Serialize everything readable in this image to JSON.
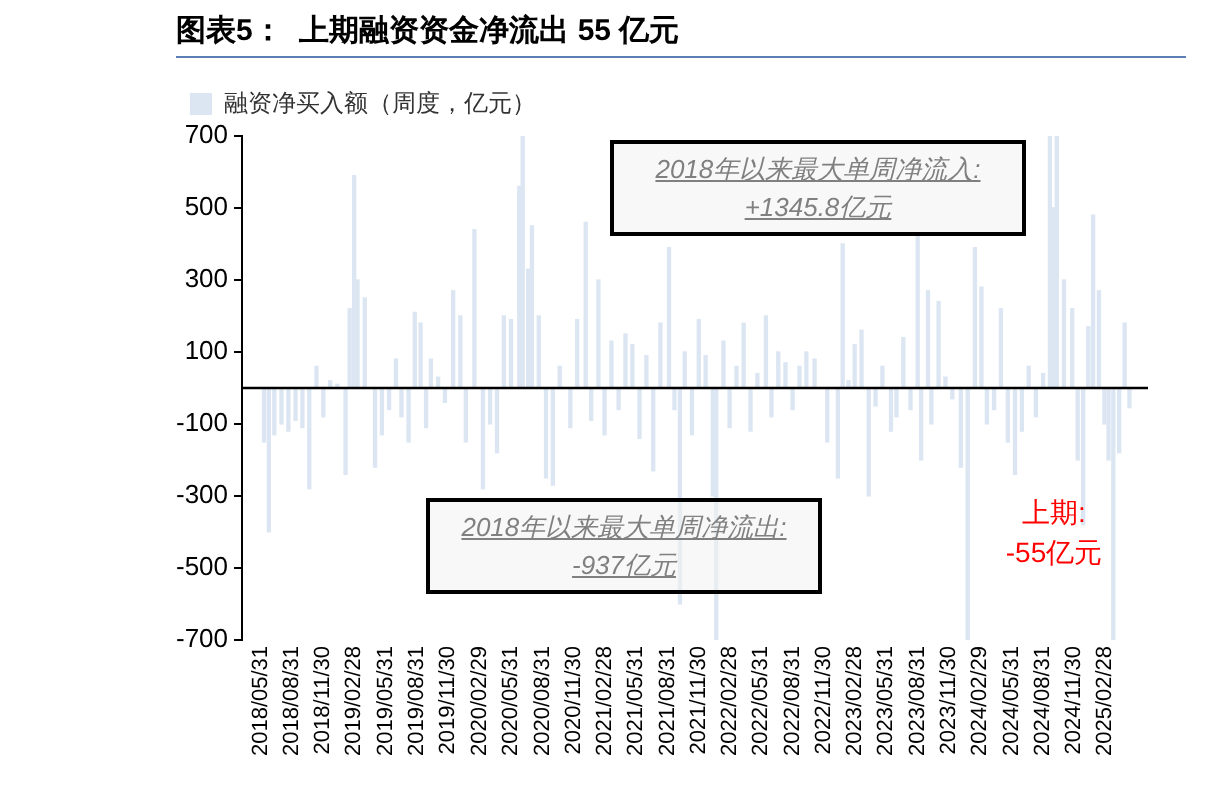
{
  "chart_data": {
    "type": "bar",
    "title": "图表5：  上期融资资金净流出 55 亿元",
    "x": [
      "2018-06-10",
      "2018-06-24",
      "2018-07-10",
      "2018-07-31",
      "2018-08-20",
      "2018-09-10",
      "2018-09-30",
      "2018-10-20",
      "2018-11-10",
      "2018-11-30",
      "2018-12-20",
      "2019-01-10",
      "2019-02-03",
      "2019-02-15",
      "2019-02-28",
      "2019-03-10",
      "2019-03-31",
      "2019-04-30",
      "2019-05-20",
      "2019-06-10",
      "2019-06-30",
      "2019-07-16",
      "2019-08-06",
      "2019-08-24",
      "2019-09-10",
      "2019-09-26",
      "2019-10-10",
      "2019-10-31",
      "2019-11-20",
      "2019-12-14",
      "2020-01-04",
      "2020-01-20",
      "2020-02-14",
      "2020-03-10",
      "2020-03-31",
      "2020-04-20",
      "2020-05-10",
      "2020-05-31",
      "2020-06-24",
      "2020-07-04",
      "2020-07-20",
      "2020-07-31",
      "2020-08-20",
      "2020-09-10",
      "2020-09-30",
      "2020-10-20",
      "2020-11-20",
      "2020-12-10",
      "2021-01-04",
      "2021-01-20",
      "2021-02-10",
      "2021-02-28",
      "2021-03-20",
      "2021-04-10",
      "2021-04-30",
      "2021-05-20",
      "2021-06-10",
      "2021-06-30",
      "2021-07-20",
      "2021-08-10",
      "2021-09-04",
      "2021-09-20",
      "2021-10-06",
      "2021-10-20",
      "2021-11-10",
      "2021-11-30",
      "2021-12-20",
      "2022-01-10",
      "2022-01-20",
      "2022-02-10",
      "2022-02-28",
      "2022-03-20",
      "2022-04-10",
      "2022-04-30",
      "2022-05-20",
      "2022-06-14",
      "2022-06-30",
      "2022-07-20",
      "2022-08-10",
      "2022-08-31",
      "2022-09-20",
      "2022-10-10",
      "2022-11-03",
      "2022-12-10",
      "2023-01-10",
      "2023-01-24",
      "2023-02-10",
      "2023-02-28",
      "2023-03-20",
      "2023-04-10",
      "2023-04-30",
      "2023-05-20",
      "2023-06-14",
      "2023-06-30",
      "2023-07-20",
      "2023-08-10",
      "2023-08-31",
      "2023-09-10",
      "2023-09-30",
      "2023-10-10",
      "2023-10-31",
      "2023-11-20",
      "2023-12-10",
      "2024-01-04",
      "2024-01-24",
      "2024-02-14",
      "2024-03-04",
      "2024-03-20",
      "2024-04-10",
      "2024-04-30",
      "2024-05-20",
      "2024-06-10",
      "2024-06-30",
      "2024-07-20",
      "2024-08-10",
      "2024-08-31",
      "2024-09-20",
      "2024-09-30",
      "2024-10-10",
      "2024-10-31",
      "2024-11-24",
      "2024-12-10",
      "2024-12-26",
      "2025-01-10",
      "2025-01-24",
      "2025-02-10",
      "2025-02-26",
      "2025-03-10",
      "2025-03-24",
      "2025-04-10",
      "2025-04-26",
      "2025-05-10"
    ],
    "series": [
      {
        "name": "融资净买入额（周度，亿元）",
        "color": "#dce6f2",
        "values": [
          -150,
          -400,
          -130,
          -100,
          -120,
          -90,
          -110,
          -280,
          60,
          -80,
          20,
          10,
          -240,
          220,
          590,
          300,
          250,
          -220,
          -130,
          -60,
          80,
          -80,
          -150,
          210,
          180,
          -110,
          80,
          30,
          -40,
          270,
          200,
          -150,
          440,
          -280,
          -100,
          -180,
          200,
          190,
          560,
          700,
          330,
          450,
          200,
          -250,
          -270,
          60,
          -110,
          190,
          460,
          -90,
          300,
          -130,
          130,
          -60,
          150,
          120,
          -140,
          90,
          -230,
          180,
          390,
          -60,
          -600,
          100,
          -130,
          190,
          90,
          -300,
          -700,
          130,
          -110,
          60,
          180,
          -120,
          40,
          200,
          -80,
          100,
          70,
          -60,
          60,
          100,
          80,
          -150,
          -250,
          400,
          20,
          120,
          160,
          -300,
          -50,
          60,
          -120,
          -80,
          140,
          -60,
          430,
          -200,
          270,
          -100,
          240,
          30,
          -30,
          -220,
          -700,
          390,
          280,
          -100,
          -60,
          220,
          -150,
          -240,
          -120,
          60,
          -80,
          40,
          700,
          500,
          700,
          300,
          220,
          -200,
          -380,
          170,
          480,
          270,
          -100,
          -200,
          -700,
          -180,
          180,
          -55
        ]
      }
    ],
    "xlim": [
      "2018-05-24",
      "2025-05-17"
    ],
    "xticks": [
      {
        "value": "2018-05-31",
        "label": "2018/05/31"
      },
      {
        "value": "2018-08-31",
        "label": "2018/08/31"
      },
      {
        "value": "2018-11-30",
        "label": "2018/11/30"
      },
      {
        "value": "2019-02-28",
        "label": "2019/02/28"
      },
      {
        "value": "2019-05-31",
        "label": "2019/05/31"
      },
      {
        "value": "2019-08-31",
        "label": "2019/08/31"
      },
      {
        "value": "2019-11-30",
        "label": "2019/11/30"
      },
      {
        "value": "2020-02-29",
        "label": "2020/02/29"
      },
      {
        "value": "2020-05-31",
        "label": "2020/05/31"
      },
      {
        "value": "2020-08-31",
        "label": "2020/08/31"
      },
      {
        "value": "2020-11-30",
        "label": "2020/11/30"
      },
      {
        "value": "2021-02-28",
        "label": "2021/02/28"
      },
      {
        "value": "2021-05-31",
        "label": "2021/05/31"
      },
      {
        "value": "2021-08-31",
        "label": "2021/08/31"
      },
      {
        "value": "2021-11-30",
        "label": "2021/11/30"
      },
      {
        "value": "2022-02-28",
        "label": "2022/02/28"
      },
      {
        "value": "2022-05-31",
        "label": "2022/05/31"
      },
      {
        "value": "2022-08-31",
        "label": "2022/08/31"
      },
      {
        "value": "2022-11-30",
        "label": "2022/11/30"
      },
      {
        "value": "2023-02-28",
        "label": "2023/02/28"
      },
      {
        "value": "2023-05-31",
        "label": "2023/05/31"
      },
      {
        "value": "2023-08-31",
        "label": "2023/08/31"
      },
      {
        "value": "2023-11-30",
        "label": "2023/11/30"
      },
      {
        "value": "2024-02-29",
        "label": "2024/02/29"
      },
      {
        "value": "2024-05-31",
        "label": "2024/05/31"
      },
      {
        "value": "2024-08-31",
        "label": "2024/08/31"
      },
      {
        "value": "2024-11-30",
        "label": "2024/11/30"
      },
      {
        "value": "2025-02-28",
        "label": "2025/02/28"
      }
    ],
    "ylim": [
      -700,
      700
    ],
    "yticks": [
      -700,
      -500,
      -300,
      -100,
      100,
      300,
      500,
      700
    ],
    "legend": "top left",
    "annotations": [
      "2018年以来最大单周净流入:\n+1345.8亿元",
      "2018年以来最大单周净流出:\n-937亿元",
      "上期:\n-55亿元"
    ]
  }
}
